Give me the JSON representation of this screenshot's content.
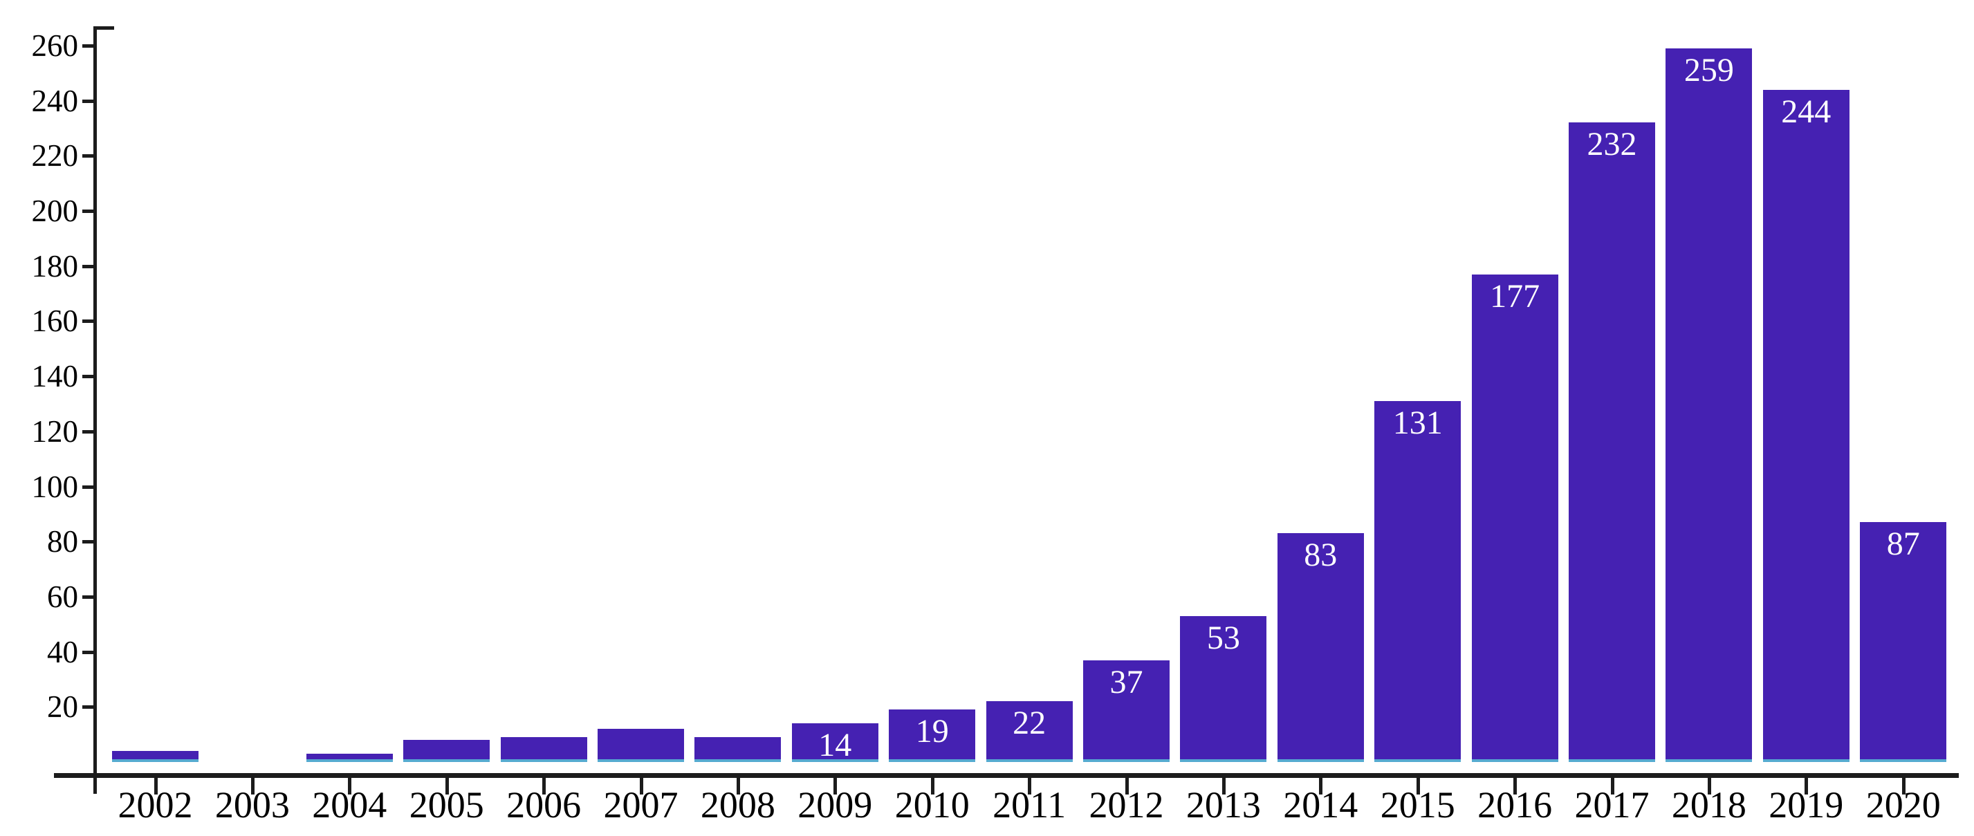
{
  "chart_data": {
    "type": "bar",
    "title": "",
    "xlabel": "",
    "ylabel": "",
    "categories": [
      "2002",
      "2003",
      "2004",
      "2005",
      "2006",
      "2007",
      "2008",
      "2009",
      "2010",
      "2011",
      "2012",
      "2013",
      "2014",
      "2015",
      "2016",
      "2017",
      "2018",
      "2019",
      "2020"
    ],
    "values": [
      4,
      0,
      3,
      8,
      9,
      12,
      9,
      14,
      19,
      22,
      37,
      53,
      83,
      131,
      177,
      232,
      259,
      244,
      87
    ],
    "bar_value_labels": [
      "",
      "",
      "",
      "",
      "",
      "",
      "",
      "14",
      "19",
      "22",
      "37",
      "53",
      "83",
      "131",
      "177",
      "232",
      "259",
      "244",
      "87"
    ],
    "ylim": [
      0,
      260
    ],
    "ytick_step": 20,
    "ytick_labels": [
      "20",
      "40",
      "60",
      "80",
      "100",
      "120",
      "140",
      "160",
      "180",
      "200",
      "220",
      "240",
      "260"
    ],
    "grid": false,
    "legend_position": "none",
    "colors": {
      "bar_fill": "#4521b2",
      "bar_bottom_edge": "#55aad0",
      "axis": "#1c1c1c",
      "bar_label_text": "#ffffff",
      "tick_label_text": "#000000",
      "background": "#ffffff"
    }
  }
}
